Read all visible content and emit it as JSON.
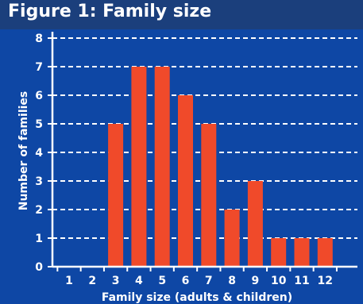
{
  "header": {
    "title": "Figure 1: Family size"
  },
  "colors": {
    "background": "#0e47a5",
    "header_band": "#1b3f7c",
    "bar": "#f04a2a",
    "grid": "#ffffff",
    "text": "#ffffff"
  },
  "chart_data": {
    "type": "bar",
    "categories": [
      "1",
      "2",
      "3",
      "4",
      "5",
      "6",
      "7",
      "8",
      "9",
      "10",
      "11",
      "12"
    ],
    "values": [
      0,
      0,
      5,
      7,
      7,
      6,
      5,
      2,
      3,
      1,
      1,
      1
    ],
    "xlabel": "Family size (adults & children)",
    "ylabel": "Number of families",
    "ylim": [
      0,
      8
    ],
    "yticks": [
      0,
      1,
      2,
      3,
      4,
      5,
      6,
      7,
      8
    ],
    "grid": true,
    "grid_style": "dashed"
  }
}
